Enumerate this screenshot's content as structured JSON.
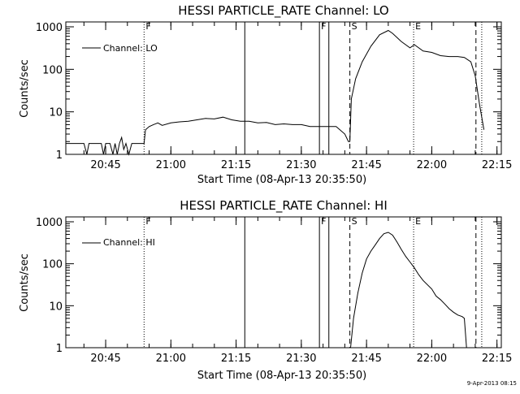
{
  "chart_data": [
    {
      "type": "line",
      "title": "HESSI PARTICLE_RATE Channel: LO",
      "xlabel": "Start Time (08-Apr-13 20:35:50)",
      "ylabel": "Counts/sec",
      "yscale": "log",
      "ylim": [
        1,
        1000
      ],
      "xlim": [
        "20:35:50",
        "22:16:00"
      ],
      "x_ticks": [
        "20:45",
        "21:00",
        "21:15",
        "21:30",
        "21:45",
        "22:00",
        "22:15"
      ],
      "y_ticks": [
        "1",
        "10",
        "100",
        "1000"
      ],
      "legend": "Channel: LO",
      "legend_position": "top-left",
      "event_lines": [
        {
          "label": "F",
          "time": "20:53:50",
          "style": "dotted"
        },
        {
          "label": "",
          "time": "21:17:00",
          "style": "solid"
        },
        {
          "label": "F",
          "time": "21:34:10",
          "style": "solid"
        },
        {
          "label": "",
          "time": "21:36:20",
          "style": "solid"
        },
        {
          "label": "S",
          "time": "21:41:10",
          "style": "dashed"
        },
        {
          "label": "E",
          "time": "21:55:50",
          "style": "dotted"
        },
        {
          "label": "",
          "time": "22:10:10",
          "style": "dashed"
        },
        {
          "label": "",
          "time": "22:11:30",
          "style": "dotted"
        }
      ],
      "series": [
        {
          "x": [
            "20:35:50",
            "20:40:00",
            "20:40:40",
            "20:41:10",
            "20:41:40",
            "20:44:00",
            "20:44:30",
            "20:45:00",
            "20:46:00",
            "20:46:40",
            "20:47:10",
            "20:47:40",
            "20:48:10",
            "20:48:40",
            "20:49:10",
            "20:49:40",
            "20:50:20",
            "20:51:00",
            "20:51:40",
            "20:53:00",
            "20:53:50",
            "20:54:10",
            "20:55:00",
            "20:56:00",
            "20:57:00",
            "20:58:00",
            "21:00:00",
            "21:02:00",
            "21:04:00",
            "21:06:00",
            "21:08:00",
            "21:10:00",
            "21:12:00",
            "21:14:00",
            "21:16:00",
            "21:18:00",
            "21:20:00",
            "21:22:00",
            "21:24:00",
            "21:26:00",
            "21:28:00",
            "21:30:00",
            "21:32:00",
            "21:34:00",
            "21:36:00",
            "21:38:00",
            "21:40:00",
            "21:40:50",
            "21:41:10",
            "21:41:30",
            "21:42:30",
            "21:44:00",
            "21:46:00",
            "21:48:00",
            "21:50:00",
            "21:51:00",
            "21:53:00",
            "21:55:00",
            "21:56:00",
            "21:58:00",
            "22:00:00",
            "22:02:00",
            "22:04:00",
            "22:06:00",
            "22:07:30",
            "22:09:00",
            "22:10:00",
            "22:11:00",
            "22:12:00"
          ],
          "y": [
            1.8,
            1.8,
            1.0,
            1.8,
            1.8,
            1.8,
            1.0,
            1.8,
            1.8,
            1.0,
            1.8,
            1.0,
            1.8,
            2.5,
            1.3,
            1.8,
            1.0,
            1.8,
            1.8,
            1.8,
            1.8,
            3.8,
            4.5,
            5.0,
            5.5,
            4.8,
            5.5,
            5.8,
            6.0,
            6.5,
            7.0,
            6.8,
            7.5,
            6.5,
            6.0,
            6.0,
            5.5,
            5.6,
            5.0,
            5.2,
            5.0,
            5.0,
            4.5,
            4.5,
            4.5,
            4.5,
            3.0,
            2.0,
            2.0,
            20,
            60,
            150,
            350,
            650,
            820,
            700,
            450,
            320,
            380,
            270,
            250,
            210,
            200,
            200,
            190,
            150,
            70,
            15,
            3.8
          ]
        }
      ]
    },
    {
      "type": "line",
      "title": "HESSI PARTICLE_RATE Channel: HI",
      "xlabel": "Start Time (08-Apr-13 20:35:50)",
      "ylabel": "Counts/sec",
      "yscale": "log",
      "ylim": [
        1,
        1000
      ],
      "xlim": [
        "20:35:50",
        "22:16:00"
      ],
      "x_ticks": [
        "20:45",
        "21:00",
        "21:15",
        "21:30",
        "21:45",
        "22:00",
        "22:15"
      ],
      "y_ticks": [
        "1",
        "10",
        "100",
        "1000"
      ],
      "legend": "Channel: HI",
      "legend_position": "top-left",
      "event_lines": [
        {
          "label": "F",
          "time": "20:53:50",
          "style": "dotted"
        },
        {
          "label": "",
          "time": "21:17:00",
          "style": "solid"
        },
        {
          "label": "F",
          "time": "21:34:10",
          "style": "solid"
        },
        {
          "label": "",
          "time": "21:36:20",
          "style": "solid"
        },
        {
          "label": "S",
          "time": "21:41:10",
          "style": "dashed"
        },
        {
          "label": "E",
          "time": "21:55:50",
          "style": "dotted"
        },
        {
          "label": "",
          "time": "22:10:10",
          "style": "dashed"
        },
        {
          "label": "",
          "time": "22:11:30",
          "style": "dotted"
        }
      ],
      "series": [
        {
          "x": [
            "21:41:20",
            "21:42:00",
            "21:43:00",
            "21:44:00",
            "21:45:00",
            "21:46:00",
            "21:47:00",
            "21:48:00",
            "21:49:00",
            "21:50:00",
            "21:51:00",
            "21:52:00",
            "21:53:00",
            "21:54:00",
            "21:55:00",
            "21:56:00",
            "21:57:00",
            "21:58:00",
            "22:00:00",
            "22:01:00",
            "22:02:00",
            "22:03:00",
            "22:04:00",
            "22:05:00",
            "22:06:00",
            "22:07:00",
            "22:07:30",
            "22:08:00"
          ],
          "y": [
            1.0,
            5,
            20,
            60,
            130,
            200,
            280,
            400,
            520,
            560,
            480,
            330,
            220,
            150,
            110,
            80,
            55,
            40,
            25,
            17,
            14,
            11,
            8.5,
            7,
            6,
            5.5,
            5,
            1.0
          ]
        }
      ]
    }
  ],
  "footer_timestamp": "9-Apr-2013 08:15"
}
